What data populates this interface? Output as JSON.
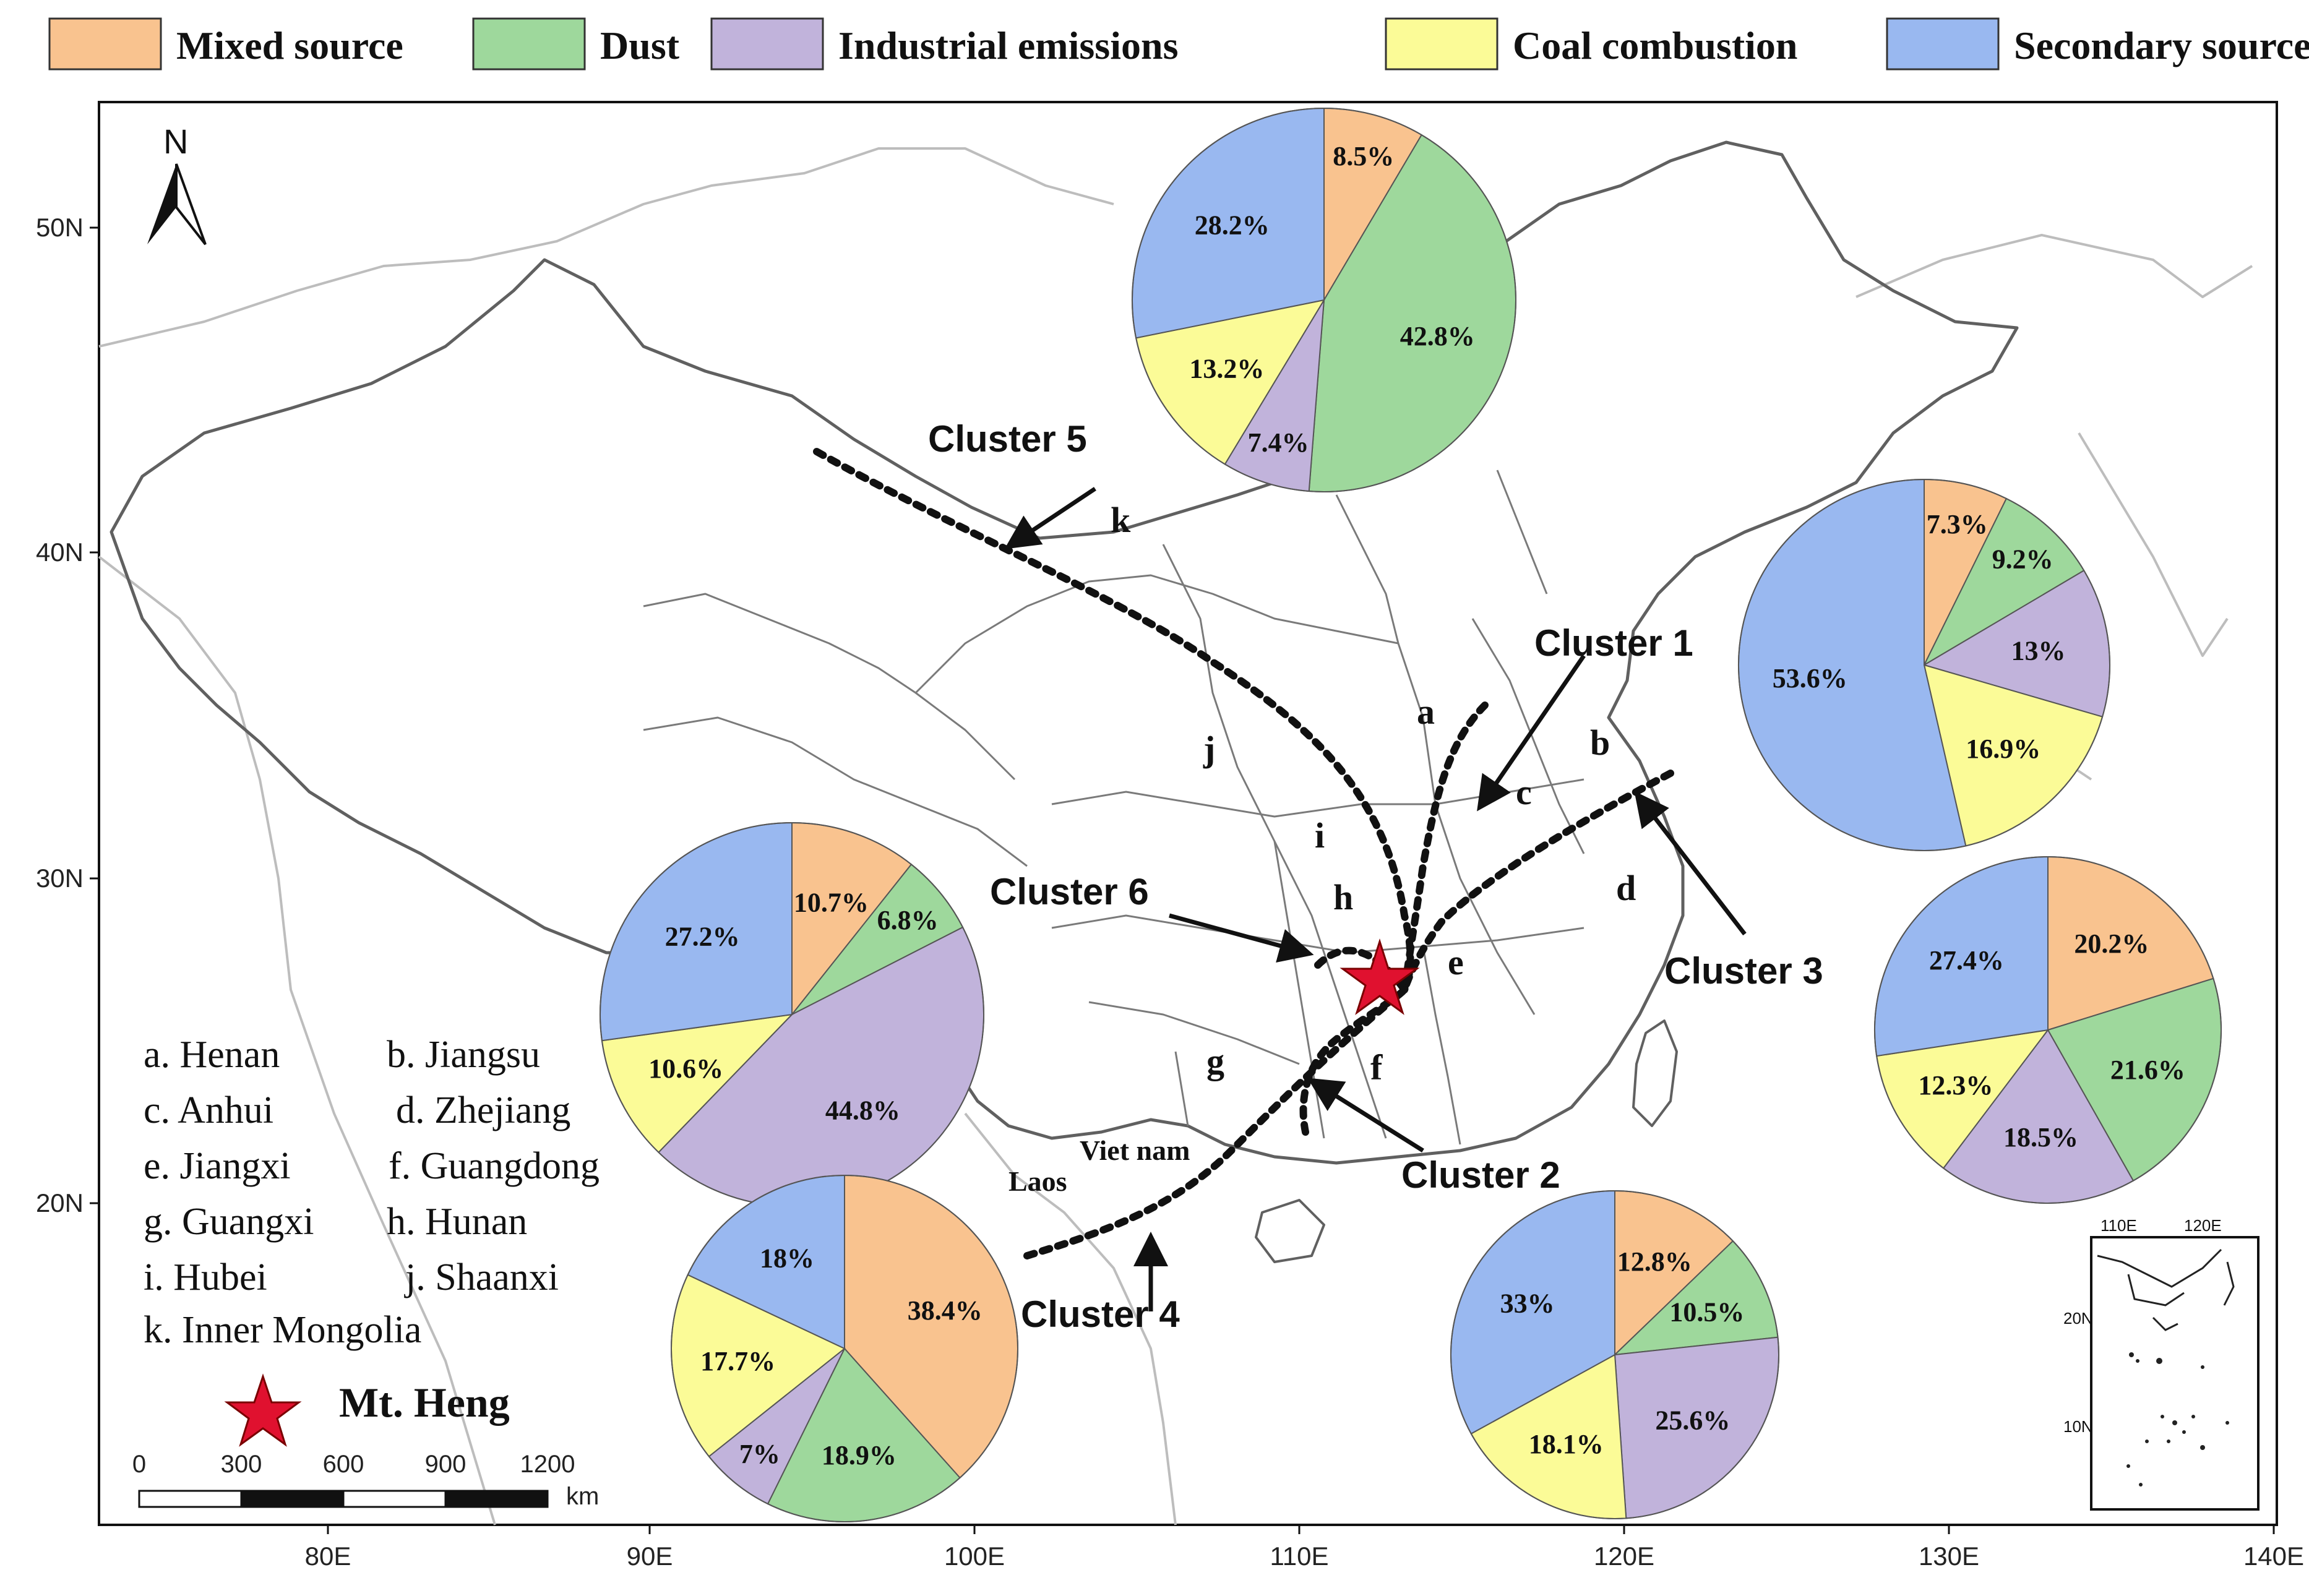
{
  "colors": {
    "mixed": "#f9c38f",
    "dust": "#9ed89c",
    "industrial": "#c1b3db",
    "coal": "#fbfb97",
    "secondary": "#99b8f0"
  },
  "legend": [
    {
      "label": "Mixed source",
      "key": "mixed"
    },
    {
      "label": "Dust",
      "key": "dust"
    },
    {
      "label": "Industrial emissions",
      "key": "industrial"
    },
    {
      "label": "Coal combustion",
      "key": "coal"
    },
    {
      "label": "Secondary source",
      "key": "secondary"
    }
  ],
  "axes": {
    "x_ticks": [
      "80E",
      "90E",
      "100E",
      "110E",
      "120E",
      "130E",
      "140E"
    ],
    "y_ticks": [
      "50N",
      "40N",
      "30N",
      "20N"
    ]
  },
  "north_label": "N",
  "pies": [
    {
      "id": "p1",
      "values": [
        8.5,
        42.8,
        7.4,
        13.2,
        28.2
      ],
      "labels": [
        "8.5%",
        "42.8%",
        "7.4%",
        "13.2%",
        "28.2%"
      ]
    },
    {
      "id": "p3",
      "values": [
        7.3,
        9.2,
        13,
        16.9,
        53.6
      ],
      "labels": [
        "7.3%",
        "9.2%",
        "13%",
        "16.9%",
        "53.6%"
      ]
    },
    {
      "id": "p6",
      "values": [
        10.7,
        6.8,
        44.8,
        10.6,
        27.2
      ],
      "labels": [
        "10.7%",
        "6.8%",
        "44.8%",
        "10.6%",
        "27.2%"
      ]
    },
    {
      "id": "p2b",
      "values": [
        20.2,
        21.6,
        18.5,
        12.3,
        27.4
      ],
      "labels": [
        "20.2%",
        "21.6%",
        "18.5%",
        "12.3%",
        "27.4%"
      ]
    },
    {
      "id": "p4",
      "values": [
        38.4,
        18.9,
        7,
        17.7,
        18
      ],
      "labels": [
        "38.4%",
        "18.9%",
        "7%",
        "17.7%",
        "18%"
      ]
    },
    {
      "id": "p2",
      "values": [
        12.8,
        10.5,
        25.6,
        18.1,
        33
      ],
      "labels": [
        "12.8%",
        "10.5%",
        "25.6%",
        "18.1%",
        "33%"
      ]
    }
  ],
  "clusters": [
    "Cluster 1",
    "Cluster 2",
    "Cluster 3",
    "Cluster 4",
    "Cluster 5",
    "Cluster 6"
  ],
  "region_letters": [
    "a",
    "b",
    "c",
    "d",
    "e",
    "f",
    "g",
    "h",
    "i",
    "j",
    "k"
  ],
  "province_key": [
    "a. Henan",
    "b. Jiangsu",
    "c. Anhui",
    "d. Zhejiang",
    "e. Jiangxi",
    "f. Guangdong",
    "g. Guangxi",
    "h. Hunan",
    "i. Hubei",
    "j. Shaanxi",
    "k. Inner Mongolia"
  ],
  "site_label": "Mt. Heng",
  "countries": [
    "Viet nam",
    "Laos"
  ],
  "scale_bar": {
    "ticks": [
      "0",
      "300",
      "600",
      "900",
      "1200"
    ],
    "unit": "km"
  },
  "inset": {
    "x_ticks": [
      "110E",
      "120E"
    ],
    "y_ticks": [
      "20N",
      "10N"
    ]
  }
}
